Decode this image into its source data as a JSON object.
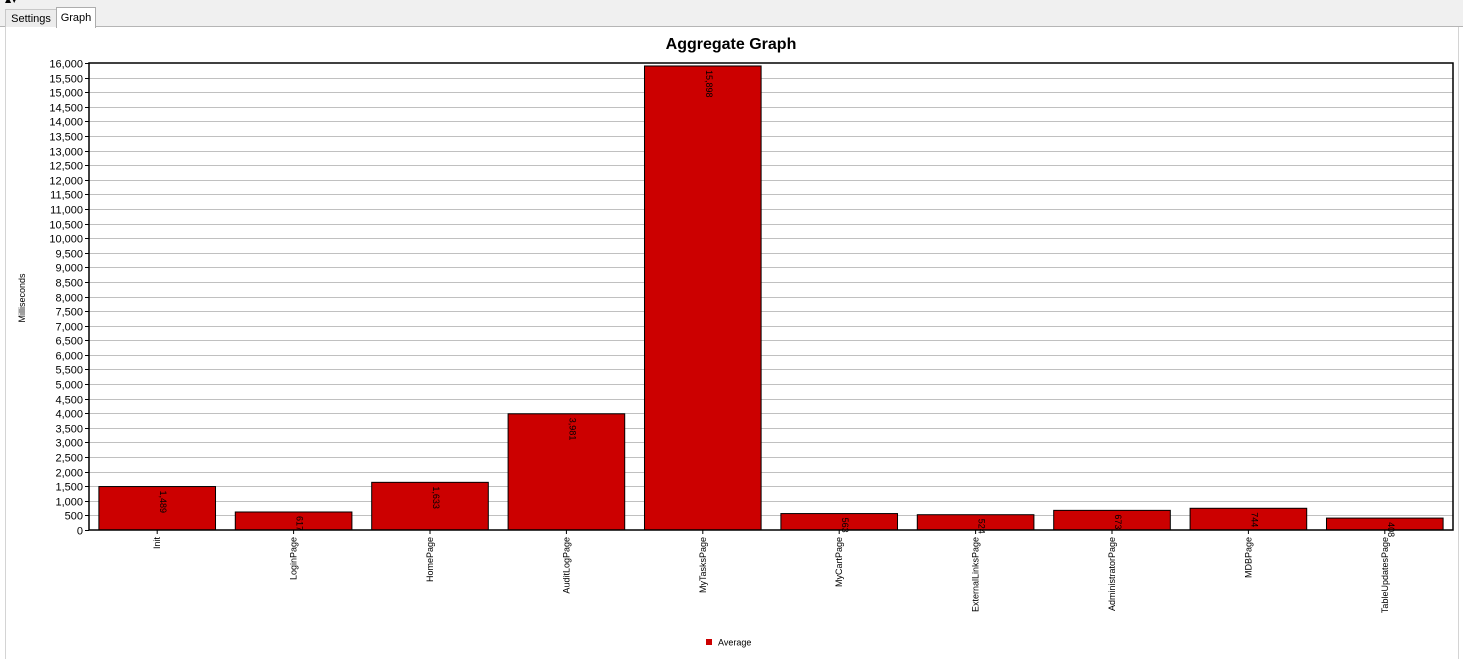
{
  "tabs": [
    {
      "label": "Settings",
      "active": false
    },
    {
      "label": "Graph",
      "active": true
    }
  ],
  "chart_data": {
    "type": "bar",
    "title": "Aggregate Graph",
    "xlabel": "",
    "ylabel": "Milliseconds",
    "ylim": [
      0,
      16000
    ],
    "ytick_step": 500,
    "grid": true,
    "legend_position": "bottom-center",
    "categories": [
      "Init",
      "LoginPage",
      "HomePage",
      "AuditLogPage",
      "MyTasksPage",
      "MyCartPage",
      "ExternalLinksPage",
      "AdministratorPage",
      "MDBPage",
      "TableUpdatesPage"
    ],
    "series": [
      {
        "name": "Average",
        "color": "#cc0000",
        "values": [
          1489,
          617,
          1633,
          3981,
          15898,
          563,
          524,
          673,
          744,
          408
        ],
        "labels": [
          "1,489",
          "617",
          "1,633",
          "3,981",
          "15,898",
          "563",
          "524",
          "673",
          "744",
          "408"
        ]
      }
    ]
  }
}
